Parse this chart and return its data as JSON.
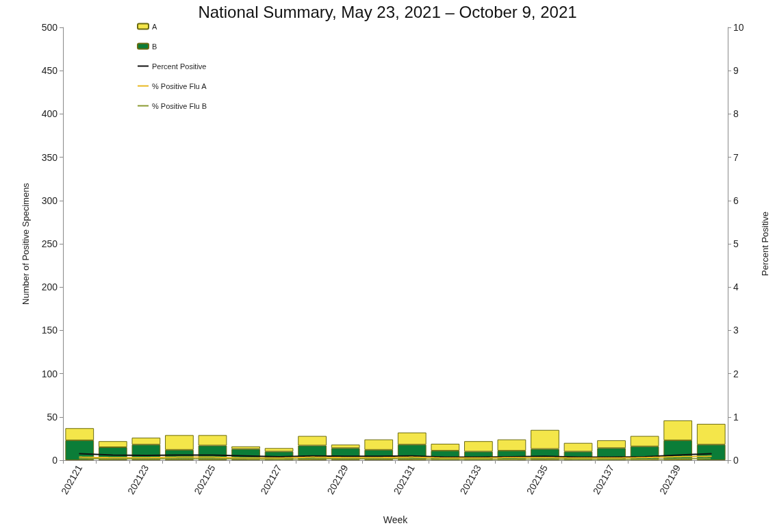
{
  "chart_data": {
    "type": "bar",
    "title": "National Summary, May 23, 2021 – October 9, 2021",
    "xlabel": "Week",
    "ylabel": "Number of Positive Specimens",
    "y2label": "Percent Positive",
    "categories": [
      "202121",
      null,
      "202123",
      null,
      "202125",
      null,
      "202127",
      null,
      "202129",
      null,
      "202131",
      null,
      "202133",
      null,
      "202135",
      null,
      "202137",
      null,
      "202139",
      null
    ],
    "stacked": true,
    "series": [
      {
        "name": "B",
        "color": "#0b7d38",
        "values": [
          23,
          15,
          18,
          12,
          17,
          13,
          10,
          17,
          14,
          12,
          18,
          11,
          10,
          11,
          13,
          10,
          14,
          16,
          23,
          18
        ]
      },
      {
        "name": "A",
        "color": "#f4e64a",
        "values": [
          14,
          7,
          8,
          17,
          12,
          3,
          4,
          11,
          4,
          12,
          14,
          8,
          12,
          13,
          22,
          10,
          9,
          12,
          23,
          24
        ]
      },
      {
        "name": "Percent Positive",
        "type": "line",
        "axis": "y2",
        "color": "#111111",
        "line_style": "solid",
        "values": [
          0.15,
          0.12,
          0.11,
          0.12,
          0.12,
          0.1,
          0.08,
          0.1,
          0.09,
          0.09,
          0.1,
          0.07,
          0.07,
          0.08,
          0.09,
          0.07,
          0.07,
          0.08,
          0.12,
          0.15
        ]
      },
      {
        "name": "% Positive Flu A",
        "type": "line",
        "axis": "y2",
        "color": "#e8b820",
        "line_style": "dashed",
        "values": [
          0.07,
          0.06,
          0.06,
          0.07,
          0.07,
          0.05,
          0.05,
          0.07,
          0.06,
          0.06,
          0.07,
          0.05,
          0.05,
          0.06,
          0.06,
          0.05,
          0.05,
          0.06,
          0.08,
          0.09
        ]
      },
      {
        "name": "% Positive Flu B",
        "type": "line",
        "axis": "y2",
        "color": "#8a9a30",
        "line_style": "dotted",
        "values": [
          0.04,
          0.03,
          0.03,
          0.03,
          0.03,
          0.03,
          0.02,
          0.03,
          0.03,
          0.03,
          0.03,
          0.02,
          0.02,
          0.02,
          0.03,
          0.02,
          0.02,
          0.02,
          0.03,
          0.04
        ]
      }
    ],
    "ylim": [
      0,
      500
    ],
    "yticks": [
      0,
      50,
      100,
      150,
      200,
      250,
      300,
      350,
      400,
      450,
      500
    ],
    "y2lim": [
      0,
      10
    ],
    "y2ticks": [
      0,
      1,
      2,
      3,
      4,
      5,
      6,
      7,
      8,
      9,
      10
    ],
    "grid": false,
    "legend": "top left",
    "marker": "none"
  }
}
